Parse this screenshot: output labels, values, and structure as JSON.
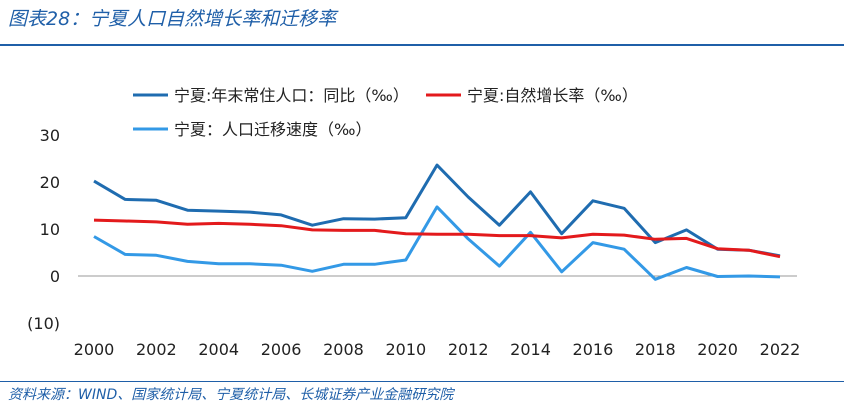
{
  "page": {
    "title": "图表28：宁夏人口自然增长率和迁移率",
    "source": "资料来源：WIND、国家统计局、宁夏统计局、长城证券产业金融研究院"
  },
  "colors": {
    "accent": "#1f5fa8"
  },
  "chart_data": {
    "type": "line",
    "x": [
      2000,
      2001,
      2002,
      2003,
      2004,
      2005,
      2006,
      2007,
      2008,
      2009,
      2010,
      2011,
      2012,
      2013,
      2014,
      2015,
      2016,
      2017,
      2018,
      2019,
      2020,
      2021,
      2022
    ],
    "xticks": [
      "2000",
      "2002",
      "2004",
      "2006",
      "2008",
      "2010",
      "2012",
      "2014",
      "2016",
      "2018",
      "2020",
      "2022"
    ],
    "yticks": [
      "30",
      "20",
      "10",
      "0",
      "(10)"
    ],
    "ylim": [
      -10,
      30
    ],
    "series": [
      {
        "name": "宁夏:年末常住人口：同比（‰）",
        "color": "#1f6cb0",
        "values": [
          20.2,
          16.3,
          16.1,
          14.0,
          13.8,
          13.6,
          13.0,
          10.8,
          12.2,
          12.1,
          12.4,
          23.6,
          16.8,
          10.8,
          17.9,
          9.0,
          16.0,
          14.4,
          7.1,
          9.8,
          5.7,
          5.5,
          4.3
        ]
      },
      {
        "name": "宁夏:自然增长率（‰）",
        "color": "#e31a1c",
        "values": [
          11.9,
          11.7,
          11.5,
          11.0,
          11.2,
          11.0,
          10.7,
          9.8,
          9.7,
          9.7,
          9.0,
          8.9,
          8.9,
          8.6,
          8.6,
          8.1,
          8.9,
          8.7,
          7.8,
          8.0,
          5.8,
          5.5,
          4.1
        ]
      },
      {
        "name": "宁夏：人口迁移速度（‰）",
        "color": "#3399e6",
        "values": [
          8.4,
          4.6,
          4.4,
          3.1,
          2.6,
          2.6,
          2.3,
          1.0,
          2.5,
          2.5,
          3.4,
          14.7,
          7.9,
          2.1,
          9.3,
          0.9,
          7.1,
          5.7,
          -0.7,
          1.8,
          -0.1,
          0.0,
          -0.2
        ]
      }
    ]
  }
}
